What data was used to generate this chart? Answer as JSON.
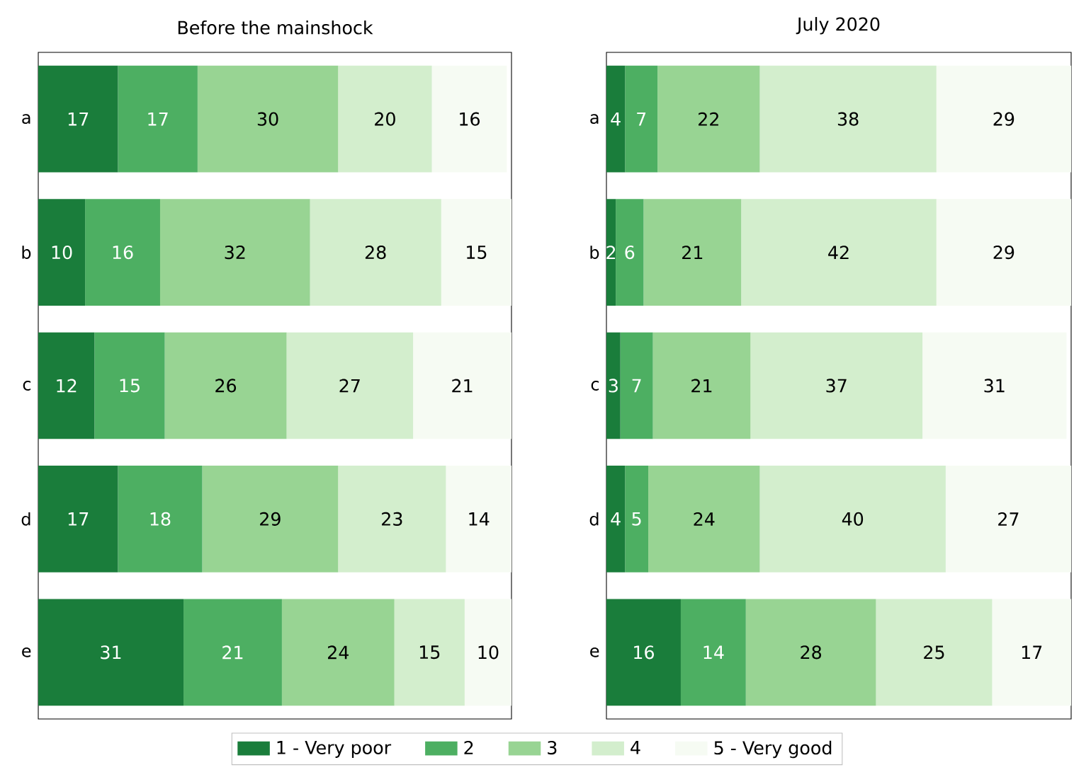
{
  "chart_data": [
    {
      "type": "bar",
      "orientation": "horizontal",
      "stacked": true,
      "data_labels": true,
      "title": "Before the mainshock",
      "categories": [
        "a",
        "b",
        "c",
        "d",
        "e"
      ],
      "tick_labels": "y",
      "legend": "bottom",
      "series": [
        {
          "name": "1 - Very poor",
          "color": "#1a7d3b",
          "values": [
            17,
            10,
            12,
            17,
            31
          ]
        },
        {
          "name": "2",
          "color": "#4daf62",
          "values": [
            17,
            16,
            15,
            18,
            21
          ]
        },
        {
          "name": "3",
          "color": "#98d493",
          "values": [
            30,
            32,
            26,
            29,
            24
          ]
        },
        {
          "name": "4",
          "color": "#d3eecd",
          "values": [
            20,
            28,
            27,
            23,
            15
          ]
        },
        {
          "name": "5 - Very good",
          "color": "#f6fbf3",
          "values": [
            16,
            15,
            21,
            14,
            10
          ]
        }
      ]
    },
    {
      "type": "bar",
      "orientation": "horizontal",
      "stacked": true,
      "data_labels": true,
      "title": "July 2020",
      "categories": [
        "a",
        "b",
        "c",
        "d",
        "e"
      ],
      "tick_labels": "y",
      "series": [
        {
          "color": "#1a7d3b",
          "values": [
            4,
            2,
            3,
            4,
            16
          ]
        },
        {
          "color": "#4daf62",
          "values": [
            7,
            6,
            7,
            5,
            14
          ]
        },
        {
          "color": "#98d493",
          "values": [
            22,
            21,
            21,
            24,
            28
          ]
        },
        {
          "color": "#d3eecd",
          "values": [
            38,
            42,
            37,
            40,
            25
          ]
        },
        {
          "color": "#f6fbf3",
          "values": [
            29,
            29,
            31,
            27,
            17
          ]
        }
      ]
    }
  ]
}
